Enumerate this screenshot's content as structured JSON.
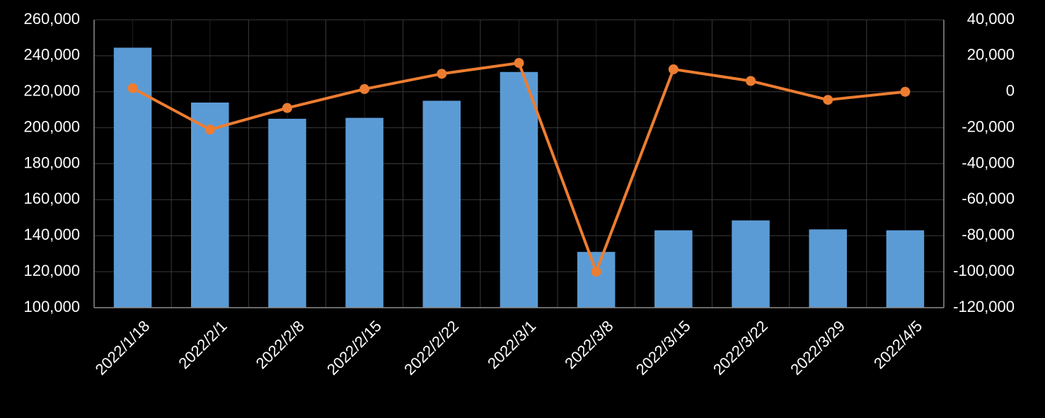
{
  "chart_data": {
    "type": "bar",
    "categories": [
      "2022/1/18",
      "2022/2/1",
      "2022/2/8",
      "2022/2/15",
      "2022/2/22",
      "2022/3/1",
      "2022/3/8",
      "2022/3/15",
      "2022/3/22",
      "2022/3/29",
      "2022/4/5"
    ],
    "series": [
      {
        "type": "bar",
        "axis": "left",
        "color": "#5b9bd5",
        "values": [
          244500,
          214000,
          205000,
          205500,
          215000,
          231000,
          131000,
          143000,
          148500,
          143500,
          143000
        ]
      },
      {
        "type": "line",
        "axis": "right",
        "color": "#ed7d31",
        "values": [
          2000,
          -21000,
          -9000,
          1500,
          10000,
          16000,
          -100000,
          12500,
          6000,
          -4500,
          0
        ]
      }
    ],
    "y_left": {
      "lim": [
        100000,
        260000
      ],
      "ticks": [
        100000,
        120000,
        140000,
        160000,
        180000,
        200000,
        220000,
        240000,
        260000
      ],
      "tick_labels": [
        "100,000",
        "120,000",
        "140,000",
        "160,000",
        "180,000",
        "200,000",
        "220,000",
        "240,000",
        "260,000"
      ]
    },
    "y_right": {
      "lim": [
        -120000,
        40000
      ],
      "ticks": [
        -120000,
        -100000,
        -80000,
        -60000,
        -40000,
        -20000,
        0,
        20000,
        40000
      ],
      "tick_labels": [
        "-120,000",
        "-100,000",
        "-80,000",
        "-60,000",
        "-40,000",
        "-20,000",
        "0",
        "20,000",
        "40,000"
      ]
    },
    "title": "",
    "xlabel": "",
    "ylabel": "",
    "grid": true,
    "legend": "none",
    "background": "#000000",
    "grid_color": "#3a3a3a",
    "axis_color": "#8c8c8c",
    "text_color": "#ffffff"
  }
}
